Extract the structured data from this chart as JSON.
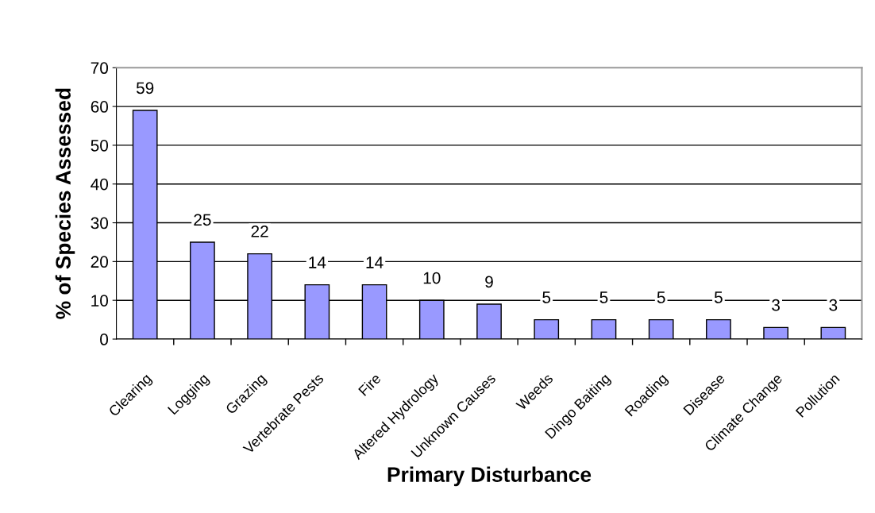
{
  "chart_data": {
    "type": "bar",
    "xlabel": "Primary Disturbance",
    "ylabel": "% of Species Assessed",
    "categories": [
      "Clearing",
      "Logging",
      "Grazing",
      "Vertebrate Pests",
      "Fire",
      "Altered Hydrology",
      "Unknown Causes",
      "Weeds",
      "Dingo Baiting",
      "Roading",
      "Disease",
      "Climate Change",
      "Pollution"
    ],
    "values": [
      59,
      25,
      22,
      14,
      14,
      10,
      9,
      5,
      5,
      5,
      5,
      3,
      3
    ],
    "color": "#9999ff",
    "ylim": [
      0,
      70
    ],
    "yticks": [
      0,
      10,
      20,
      30,
      40,
      50,
      60,
      70
    ],
    "grid": "y",
    "data_labels": true
  }
}
